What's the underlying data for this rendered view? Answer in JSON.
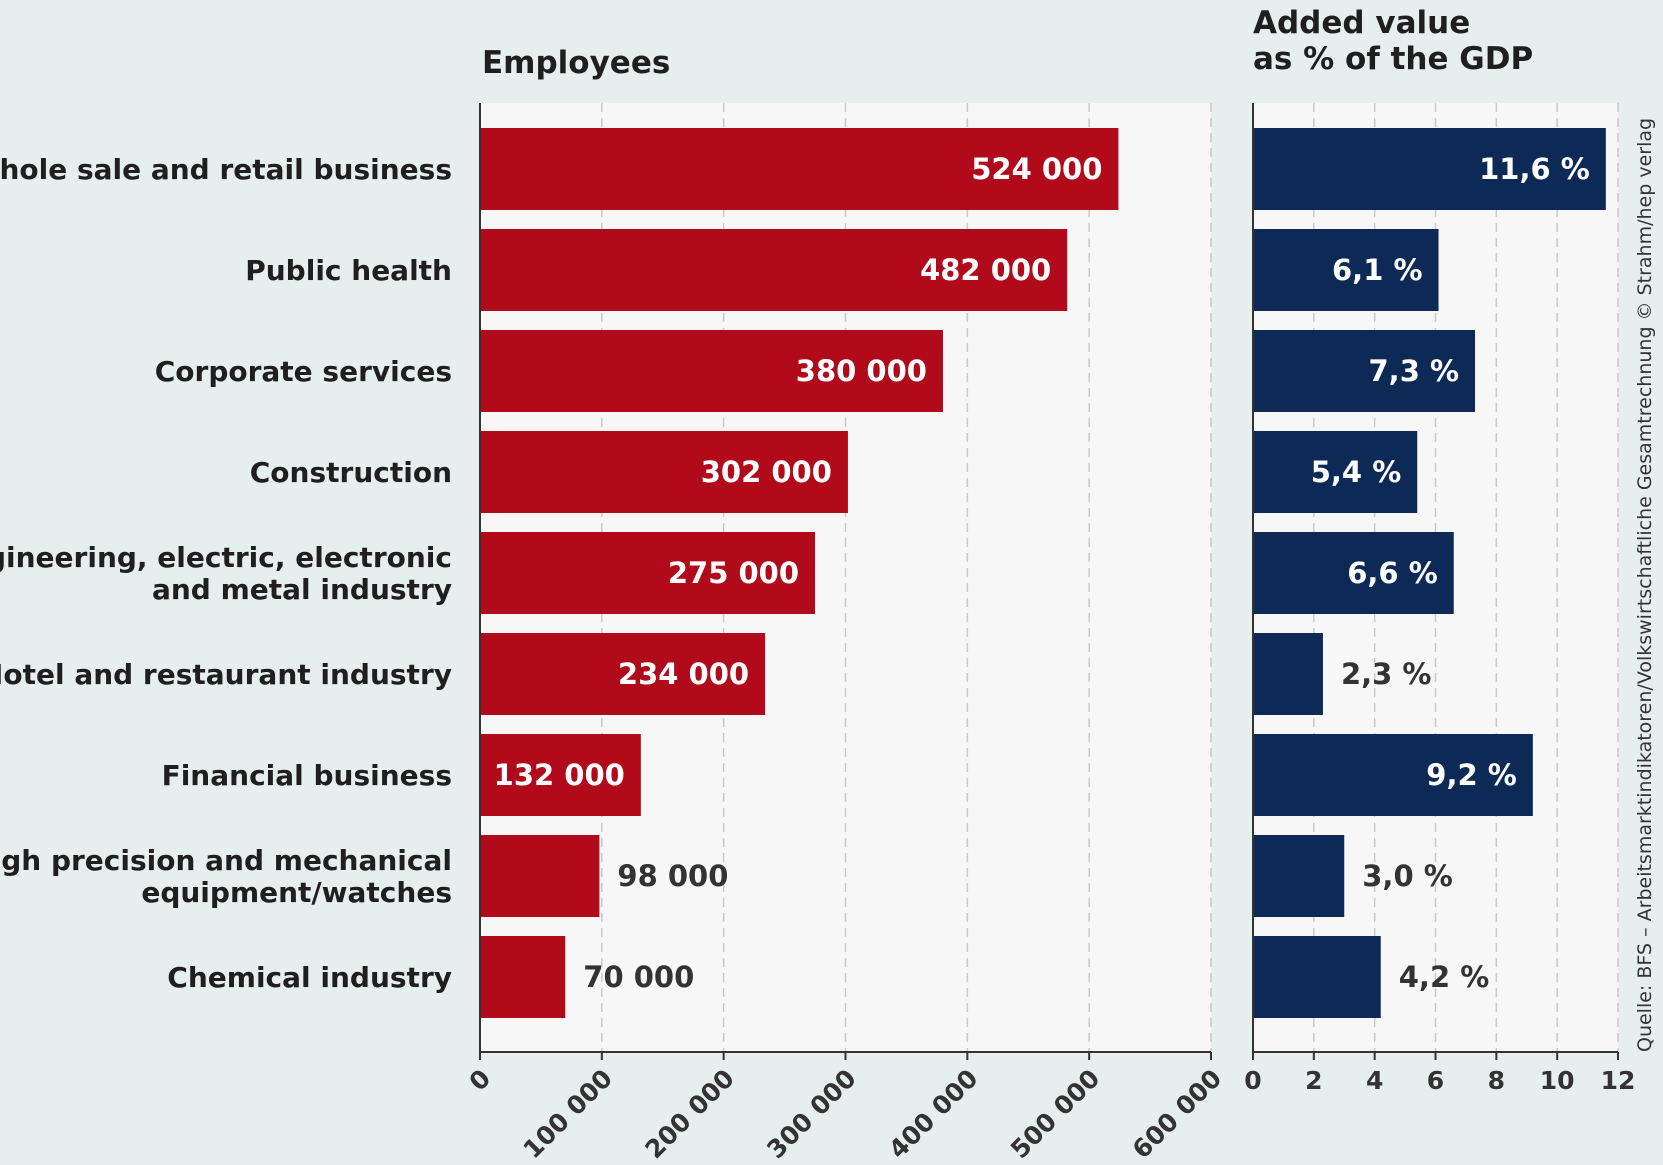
{
  "chart_data": [
    {
      "type": "bar",
      "orientation": "horizontal",
      "title": "Employees",
      "categories": [
        [
          "Whole sale and retail business"
        ],
        [
          "Public health"
        ],
        [
          "Corporate services"
        ],
        [
          "Construction"
        ],
        [
          "Engineering, electric, electronic",
          "and metal industry"
        ],
        [
          "Hotel and restaurant industry"
        ],
        [
          "Financial business"
        ],
        [
          "High precision and mechanical",
          "equipment/watches"
        ],
        [
          "Chemical industry"
        ]
      ],
      "values": [
        524000,
        482000,
        380000,
        302000,
        275000,
        234000,
        132000,
        98000,
        70000
      ],
      "value_labels": [
        "524 000",
        "482 000",
        "380 000",
        "302 000",
        "275 000",
        "234 000",
        "132 000",
        "98 000",
        "70 000"
      ],
      "xlim": [
        0,
        600000
      ],
      "ticks": [
        0,
        100000,
        200000,
        300000,
        400000,
        500000,
        600000
      ],
      "tick_labels": [
        "0",
        "100 000",
        "200 000",
        "300 000",
        "400 000",
        "500 000",
        "600 000"
      ],
      "grid": true,
      "color": "#b00a1b"
    },
    {
      "type": "bar",
      "orientation": "horizontal",
      "title": [
        "Added value",
        "as % of the GDP"
      ],
      "values": [
        11.6,
        6.1,
        7.3,
        5.4,
        6.6,
        2.3,
        9.2,
        3.0,
        4.2
      ],
      "value_labels": [
        "11,6 %",
        "6,1 %",
        "7,3 %",
        "5,4 %",
        "6,6 %",
        "2,3 %",
        "9,2 %",
        "3,0 %",
        "4,2 %"
      ],
      "xlim": [
        0,
        12
      ],
      "ticks": [
        0,
        2,
        4,
        6,
        8,
        10,
        12
      ],
      "tick_labels": [
        "0",
        "2",
        "4",
        "6",
        "8",
        "10",
        "12"
      ],
      "grid": true,
      "color": "#0d2a57"
    }
  ],
  "source": "Quelle: BFS – Arbeitsmarktindikatoren/Volkswirtschaftliche Gesamtrechnung © Strahm/hep verlag",
  "colors": {
    "background": "#e6efed",
    "plot_background": "#f7f7f7",
    "employees_bar": "#b00a1b",
    "gdp_bar": "#0d2a57"
  }
}
